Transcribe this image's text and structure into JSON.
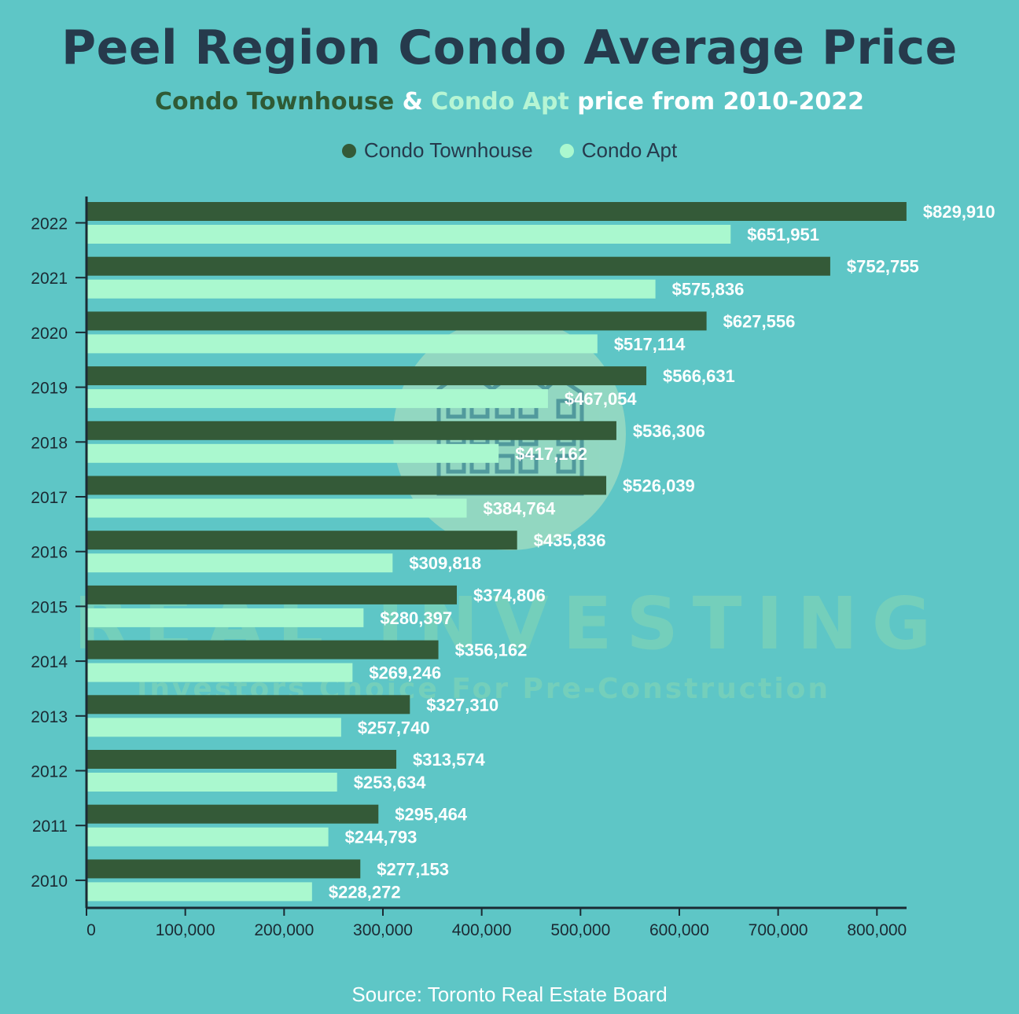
{
  "title": "Peel Region Condo Average Price",
  "subtitle": {
    "townhouse": "Condo Townhouse",
    "amp": " & ",
    "apt": "Condo Apt",
    "rest": " price from 2010-2022"
  },
  "source": "Source: Toronto Real Estate Board",
  "watermark": {
    "brand": "REAL INVESTING",
    "tagline": "Investors Choice For Pre-Construction"
  },
  "colors": {
    "background": "#5ec6c6",
    "townhouse": "#345a38",
    "apt": "#aaf8cf",
    "axis": "#1b2a33"
  },
  "chart_data": {
    "type": "bar",
    "orientation": "horizontal",
    "categories": [
      "2022",
      "2021",
      "2020",
      "2019",
      "2018",
      "2017",
      "2016",
      "2015",
      "2014",
      "2013",
      "2012",
      "2011",
      "2010"
    ],
    "series": [
      {
        "name": "Condo Townhouse",
        "color": "#345a38",
        "values": [
          829910,
          752755,
          627556,
          566631,
          536306,
          526039,
          435836,
          374806,
          356162,
          327310,
          313574,
          295464,
          277153
        ],
        "labels": [
          "$829,910",
          "$752,755",
          "$627,556",
          "$566,631",
          "$536,306",
          "$526,039",
          "$435,836",
          "$374,806",
          "$356,162",
          "$327,310",
          "$313,574",
          "$295,464",
          "$277,153"
        ]
      },
      {
        "name": "Condo Apt",
        "color": "#aaf8cf",
        "values": [
          651951,
          575836,
          517114,
          467054,
          417162,
          384764,
          309818,
          280397,
          269246,
          257740,
          253634,
          244793,
          228272
        ],
        "labels": [
          "$651,951",
          "$575,836",
          "$517,114",
          "$467,054",
          "$417,162",
          "$384,764",
          "$309,818",
          "$280,397",
          "$269,246",
          "$257,740",
          "$253,634",
          "$244,793",
          "$228,272"
        ]
      }
    ],
    "xlim": [
      0,
      830000
    ],
    "xticks": [
      0,
      100000,
      200000,
      300000,
      400000,
      500000,
      600000,
      700000,
      800000
    ],
    "xtick_labels": [
      "0",
      "100,000",
      "200,000",
      "300,000",
      "400,000",
      "500,000",
      "600,000",
      "700,000",
      "800,000"
    ],
    "grid": false,
    "legend": "top-center"
  }
}
